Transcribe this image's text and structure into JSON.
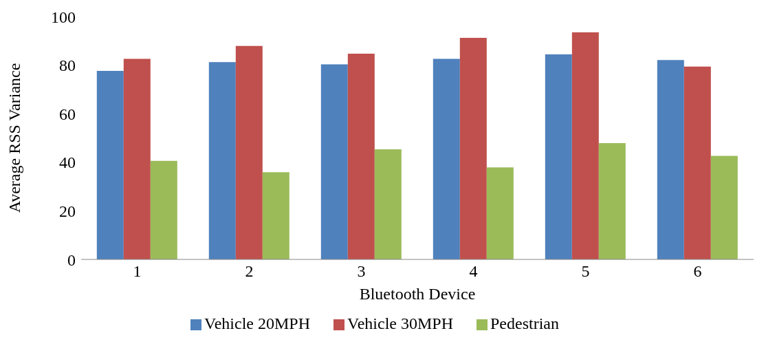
{
  "chart_data": {
    "type": "bar",
    "xlabel": "Bluetooth Device",
    "ylabel": "Average RSS Variance",
    "categories": [
      "1",
      "2",
      "3",
      "4",
      "5",
      "6"
    ],
    "series": [
      {
        "name": "Vehicle 20MPH",
        "color": "#4f81bd",
        "values": [
          77.6,
          81.2,
          80.3,
          82.6,
          84.4,
          82.1
        ]
      },
      {
        "name": "Vehicle 30MPH",
        "color": "#c0504d",
        "values": [
          82.6,
          87.9,
          84.7,
          91.2,
          93.5,
          79.4
        ]
      },
      {
        "name": "Pedestrian",
        "color": "#9bbb59",
        "values": [
          40.6,
          35.9,
          45.3,
          37.9,
          47.9,
          42.6
        ]
      }
    ],
    "ylim": [
      0,
      100
    ],
    "yticks": [
      0,
      20,
      40,
      60,
      80,
      100
    ],
    "legend": "bottom"
  }
}
